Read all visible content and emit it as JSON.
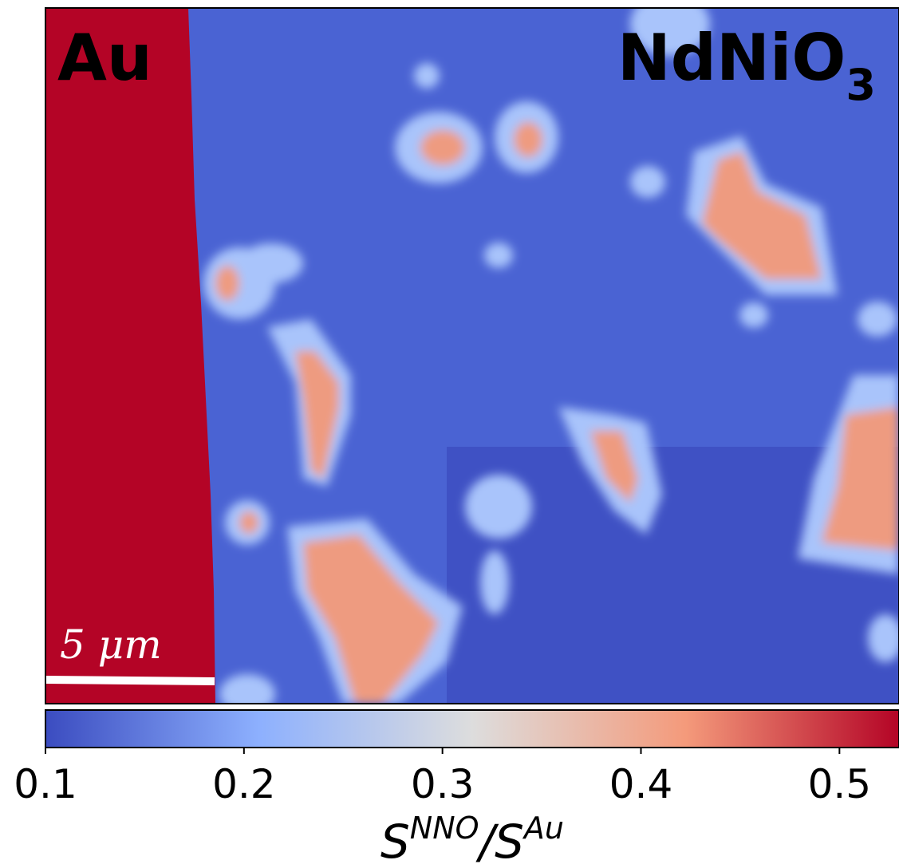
{
  "chart_data": {
    "type": "colormap-image",
    "annotations": {
      "left_region": "Au",
      "right_region": {
        "text": "NdNiO",
        "subscript": "3"
      },
      "scale_bar": "5 μm"
    },
    "colorbar": {
      "clim": [
        0.1,
        0.53
      ],
      "ticks": [
        0.1,
        0.2,
        0.3,
        0.4,
        0.5
      ],
      "label": [
        {
          "text": "S",
          "sup": false
        },
        {
          "text": "NNO",
          "sup": true
        },
        {
          "text": "/S",
          "sup": false
        },
        {
          "text": "Au",
          "sup": true
        }
      ],
      "colors": [
        "#3b4cc0",
        "#8db0fe",
        "#dddddd",
        "#f49a7b",
        "#b40426"
      ]
    }
  }
}
